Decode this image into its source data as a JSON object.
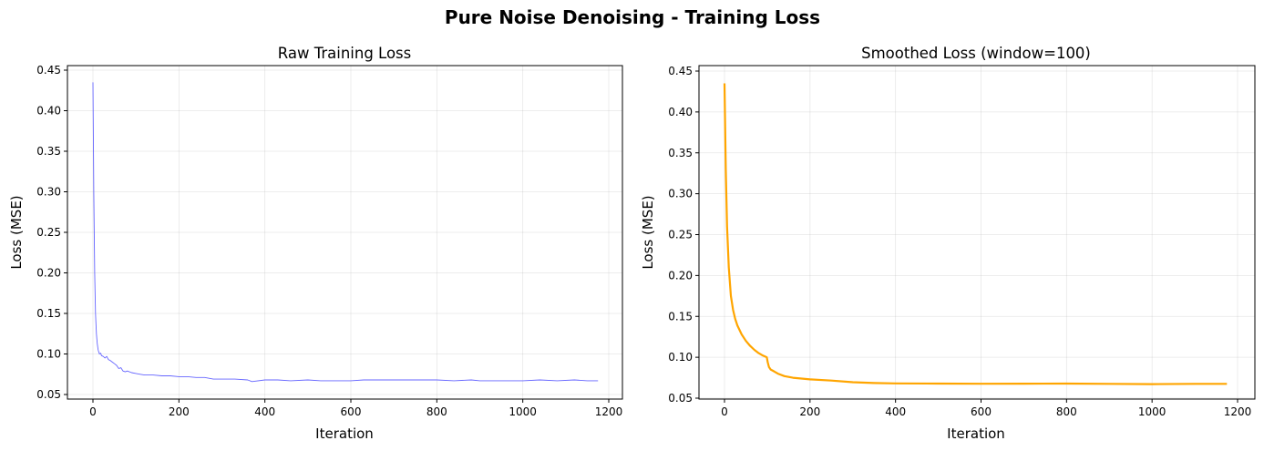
{
  "title": "Pure Noise Denoising - Training Loss",
  "chart_data": [
    {
      "type": "line",
      "title": "Raw Training Loss",
      "xlabel": "Iteration",
      "ylabel": "Loss (MSE)",
      "xlim": [
        -60,
        1235
      ],
      "ylim": [
        0.044,
        0.452
      ],
      "xticks": [
        0,
        200,
        400,
        600,
        800,
        1000,
        1200
      ],
      "yticks": [
        0.05,
        0.1,
        0.15,
        0.2,
        0.25,
        0.3,
        0.35,
        0.4,
        0.45
      ],
      "grid": true,
      "color": "#6666ff",
      "series": [
        {
          "x": [
            0,
            2,
            4,
            6,
            8,
            10,
            12,
            15,
            18,
            20,
            24,
            28,
            32,
            36,
            40,
            45,
            50,
            55,
            60,
            65,
            70,
            75,
            80,
            90,
            100,
            110,
            120,
            140,
            160,
            180,
            200,
            220,
            240,
            260,
            280,
            300,
            330,
            360,
            370,
            400,
            430,
            460,
            500,
            530,
            560,
            600,
            630,
            660,
            700,
            740,
            780,
            800,
            840,
            880,
            900,
            940,
            980,
            1000,
            1040,
            1080,
            1120,
            1150,
            1175
          ],
          "y": [
            0.435,
            0.3,
            0.2,
            0.15,
            0.125,
            0.113,
            0.105,
            0.1,
            0.101,
            0.098,
            0.097,
            0.095,
            0.097,
            0.093,
            0.092,
            0.09,
            0.088,
            0.086,
            0.082,
            0.083,
            0.079,
            0.078,
            0.079,
            0.077,
            0.076,
            0.075,
            0.074,
            0.074,
            0.073,
            0.073,
            0.072,
            0.072,
            0.071,
            0.071,
            0.069,
            0.069,
            0.069,
            0.068,
            0.066,
            0.068,
            0.068,
            0.067,
            0.068,
            0.067,
            0.067,
            0.067,
            0.068,
            0.068,
            0.068,
            0.068,
            0.068,
            0.068,
            0.067,
            0.068,
            0.067,
            0.067,
            0.067,
            0.067,
            0.068,
            0.067,
            0.068,
            0.067,
            0.067
          ]
        }
      ]
    },
    {
      "type": "line",
      "title": "Smoothed Loss (window=100)",
      "xlabel": "Iteration",
      "ylabel": "Loss (MSE)",
      "xlim": [
        -60,
        1235
      ],
      "ylim": [
        0.047,
        0.454
      ],
      "xticks": [
        0,
        200,
        400,
        600,
        800,
        1000,
        1200
      ],
      "yticks": [
        0.05,
        0.1,
        0.15,
        0.2,
        0.25,
        0.3,
        0.35,
        0.4,
        0.45
      ],
      "grid": true,
      "color": "#ffa500",
      "series": [
        {
          "x": [
            0,
            3,
            6,
            10,
            15,
            20,
            25,
            30,
            40,
            50,
            60,
            70,
            80,
            90,
            99,
            101,
            104,
            108,
            115,
            125,
            140,
            160,
            180,
            200,
            250,
            300,
            350,
            400,
            500,
            600,
            700,
            800,
            900,
            1000,
            1100,
            1175
          ],
          "y": [
            0.435,
            0.33,
            0.26,
            0.21,
            0.175,
            0.158,
            0.147,
            0.139,
            0.128,
            0.12,
            0.114,
            0.109,
            0.105,
            0.102,
            0.1,
            0.094,
            0.088,
            0.085,
            0.083,
            0.08,
            0.077,
            0.075,
            0.074,
            0.073,
            0.0715,
            0.0695,
            0.0685,
            0.068,
            0.0678,
            0.0676,
            0.0677,
            0.0678,
            0.0675,
            0.0672,
            0.0675,
            0.0675
          ]
        }
      ]
    }
  ]
}
